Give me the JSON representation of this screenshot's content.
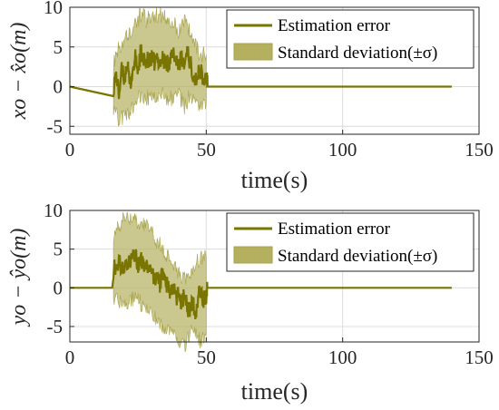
{
  "colors": {
    "line": "#7a7400",
    "band": "#b4b060",
    "grid": "#dcdcdc",
    "axis": "#262626"
  },
  "chart_data": [
    {
      "type": "line",
      "xlabel": "time(s)",
      "ylabel": "x_o - x̂_o (m)",
      "ylabel_text": "xo − x̂o(m)",
      "xlim": [
        0,
        150
      ],
      "ylim": [
        -6,
        10
      ],
      "xticks": [
        0,
        50,
        100,
        150
      ],
      "yticks": [
        -5,
        0,
        5,
        10
      ],
      "grid": true,
      "legend": {
        "placement": "top-right",
        "entries": [
          "Estimation error",
          "Standard deviation(±σ)"
        ]
      },
      "series": [
        {
          "name": "Estimation error",
          "x": [
            0,
            16,
            17,
            18,
            19,
            20,
            21,
            22,
            23,
            24,
            25,
            26,
            27,
            28,
            29,
            30,
            31,
            32,
            33,
            34,
            35,
            36,
            37,
            38,
            39,
            40,
            41,
            42,
            43,
            44,
            45,
            46,
            47,
            48,
            49,
            50,
            50.5,
            140
          ],
          "y": [
            0,
            0,
            1.5,
            -1,
            2,
            1,
            3,
            0,
            2,
            3.5,
            2,
            4.5,
            3,
            3.5,
            3,
            3.5,
            3,
            3.5,
            3,
            3.5,
            3,
            3,
            3.5,
            4,
            3.5,
            3,
            3.5,
            2.5,
            5,
            3,
            2,
            1,
            1.5,
            2,
            0.5,
            1.5,
            0,
            0
          ]
        },
        {
          "name": "Standard deviation(±σ)",
          "x": [
            16,
            18,
            20,
            22,
            24,
            26,
            28,
            30,
            32,
            34,
            36,
            38,
            40,
            42,
            44,
            46,
            48,
            50
          ],
          "upper": [
            3,
            5,
            6,
            7,
            8,
            9,
            8.5,
            9,
            9,
            9,
            8.5,
            8,
            7,
            8.5,
            7,
            5,
            4,
            4
          ],
          "lower": [
            -3,
            -4,
            -4,
            -3,
            -2,
            -1,
            -1.5,
            -1,
            -1,
            -1,
            -1.5,
            -1.5,
            -1,
            -2.5,
            -1,
            -2,
            -2,
            -2
          ]
        }
      ]
    },
    {
      "type": "line",
      "xlabel": "time(s)",
      "ylabel": "y_o - ŷ_o (m)",
      "ylabel_text": "yo − ŷo(m)",
      "xlim": [
        0,
        150
      ],
      "ylim": [
        -7,
        10
      ],
      "xticks": [
        0,
        50,
        100,
        150
      ],
      "yticks": [
        -5,
        0,
        5,
        10
      ],
      "grid": true,
      "legend": {
        "placement": "top-right",
        "entries": [
          "Estimation error",
          "Standard deviation(±σ)"
        ]
      },
      "series": [
        {
          "name": "Estimation error",
          "x": [
            0,
            15.5,
            16,
            18,
            20,
            22,
            23,
            24,
            25,
            26,
            27,
            28,
            29,
            30,
            31,
            32,
            33,
            34,
            35,
            36,
            37,
            38,
            39,
            40,
            41,
            42,
            43,
            44,
            45,
            46,
            47,
            48,
            49,
            50,
            50.5,
            140
          ],
          "y": [
            0,
            0,
            2.5,
            3,
            3,
            3.5,
            4,
            4.5,
            3,
            4,
            2.5,
            3.5,
            2,
            2.5,
            1,
            1.5,
            0.5,
            2,
            1,
            0,
            -0.5,
            0,
            -1.5,
            -0.5,
            -2,
            -1,
            -2.5,
            -3,
            -1.5,
            -3.5,
            -1,
            -0.5,
            -1.5,
            -1,
            0,
            0
          ]
        },
        {
          "name": "Standard deviation(±σ)",
          "x": [
            16,
            18,
            20,
            22,
            24,
            26,
            28,
            30,
            32,
            34,
            36,
            38,
            40,
            42,
            44,
            46,
            48,
            50
          ],
          "upper": [
            7,
            8,
            9,
            9,
            9,
            8,
            8,
            7,
            6,
            5,
            4,
            3,
            2,
            1,
            2,
            3,
            4,
            4
          ],
          "lower": [
            -1,
            -2,
            -2,
            -2,
            -1,
            -2,
            -3,
            -3.5,
            -4,
            -5,
            -5.5,
            -6,
            -7,
            -7.5,
            -6,
            -5.5,
            -7,
            -6
          ]
        }
      ]
    }
  ]
}
